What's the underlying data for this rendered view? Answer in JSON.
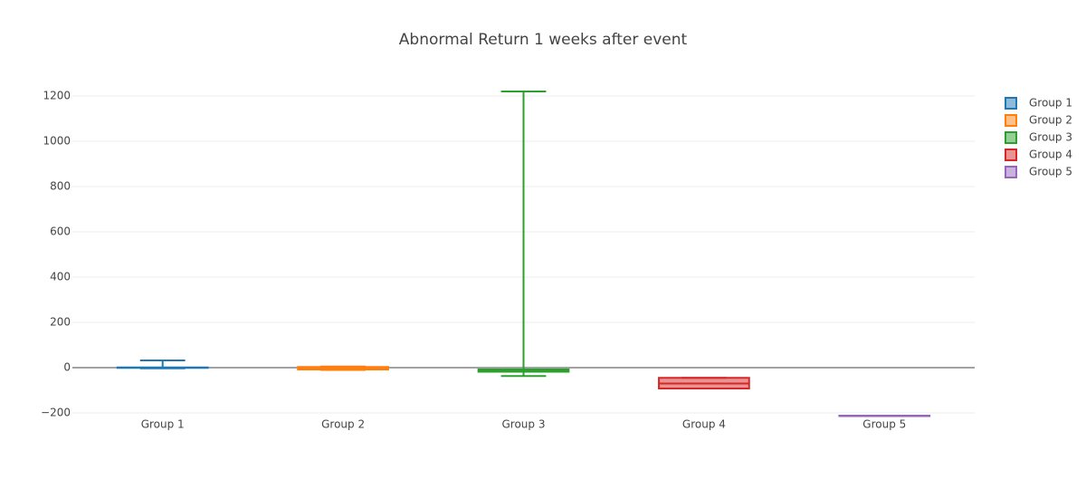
{
  "chart_data": {
    "type": "box",
    "title": "Abnormal Return 1 weeks after event",
    "series": [
      {
        "name": "Group 1",
        "color": "#1f77b4",
        "min": -3,
        "q1": -1,
        "median": 0,
        "q3": 1,
        "max": 32
      },
      {
        "name": "Group 2",
        "color": "#ff7f0e",
        "min": -10,
        "q1": -8,
        "median": -4,
        "q3": 3,
        "max": 5
      },
      {
        "name": "Group 3",
        "color": "#2ca02c",
        "min": -37,
        "q1": -18,
        "median": -13,
        "q3": -8,
        "max": 1220
      },
      {
        "name": "Group 4",
        "color": "#d62728",
        "min": -92,
        "q1": -92,
        "median": -70,
        "q3": -45,
        "max": -45
      },
      {
        "name": "Group 5",
        "color": "#9467bd",
        "min": -212,
        "q1": -212,
        "median": -212,
        "q3": -212,
        "max": -212
      }
    ],
    "ylim": [
      -216,
      1224
    ],
    "yticks": [
      {
        "value": -200,
        "label": "−200"
      },
      0,
      200,
      400,
      600,
      800,
      1000,
      1200
    ],
    "grid": true,
    "zeroline": true,
    "legend": "right"
  }
}
